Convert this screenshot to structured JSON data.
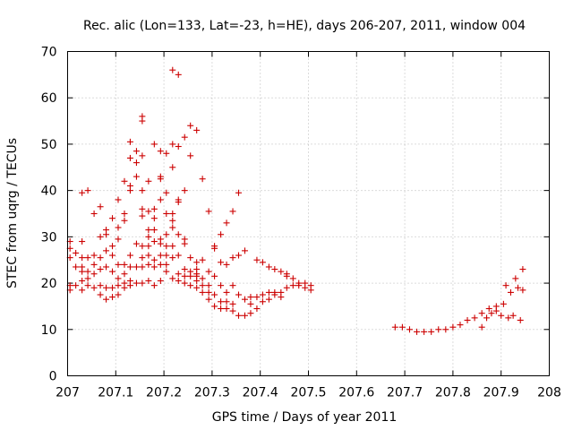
{
  "chart_data": {
    "type": "scatter",
    "title": "Rec. alic (Lon=133, Lat=-23, h=HE), days 206-207, 2011, window 004",
    "xlabel": "GPS time / Days of year 2011",
    "ylabel": "STEC from uqrg / TECUs",
    "xlim": [
      207,
      208
    ],
    "ylim": [
      0,
      70
    ],
    "grid": true,
    "marker": "+",
    "marker_color": "#cc0000",
    "x_ticks": [
      207,
      207.1,
      207.2,
      207.3,
      207.4,
      207.5,
      207.6,
      207.7,
      207.8,
      207.9,
      208
    ],
    "x_tick_labels": [
      "207",
      "207.1",
      "207.2",
      "207.3",
      "207.4",
      "207.5",
      "207.6",
      "207.7",
      "207.8",
      "207.9",
      "208"
    ],
    "y_ticks": [
      0,
      10,
      20,
      30,
      40,
      50,
      60,
      70
    ],
    "y_tick_labels": [
      "0",
      "10",
      "20",
      "30",
      "40",
      "50",
      "60",
      "70"
    ],
    "series": [
      {
        "name": "STEC",
        "points": [
          [
            207.005,
            18.5
          ],
          [
            207.005,
            19.5
          ],
          [
            207.005,
            25.5
          ],
          [
            207.005,
            27.5
          ],
          [
            207.005,
            29.0
          ],
          [
            207.017,
            19.5
          ],
          [
            207.017,
            23.5
          ],
          [
            207.017,
            26.5
          ],
          [
            207.03,
            18.5
          ],
          [
            207.03,
            20.5
          ],
          [
            207.03,
            22.5
          ],
          [
            207.03,
            23.5
          ],
          [
            207.03,
            25.5
          ],
          [
            207.03,
            29.0
          ],
          [
            207.03,
            39.5
          ],
          [
            207.042,
            19.5
          ],
          [
            207.042,
            21.0
          ],
          [
            207.042,
            22.5
          ],
          [
            207.042,
            25.5
          ],
          [
            207.042,
            40.0
          ],
          [
            207.055,
            19.0
          ],
          [
            207.055,
            22.0
          ],
          [
            207.055,
            24.0
          ],
          [
            207.055,
            26.0
          ],
          [
            207.055,
            35.0
          ],
          [
            207.068,
            17.5
          ],
          [
            207.068,
            19.5
          ],
          [
            207.068,
            23.0
          ],
          [
            207.068,
            25.5
          ],
          [
            207.068,
            30.0
          ],
          [
            207.068,
            36.5
          ],
          [
            207.08,
            16.5
          ],
          [
            207.08,
            19.0
          ],
          [
            207.08,
            23.5
          ],
          [
            207.08,
            27.0
          ],
          [
            207.08,
            30.5
          ],
          [
            207.08,
            31.5
          ],
          [
            207.093,
            17.0
          ],
          [
            207.093,
            19.0
          ],
          [
            207.093,
            22.5
          ],
          [
            207.093,
            26.0
          ],
          [
            207.093,
            28.0
          ],
          [
            207.093,
            34.0
          ],
          [
            207.105,
            17.5
          ],
          [
            207.105,
            19.5
          ],
          [
            207.105,
            21.0
          ],
          [
            207.105,
            24.0
          ],
          [
            207.105,
            29.5
          ],
          [
            207.105,
            32.0
          ],
          [
            207.105,
            38.0
          ],
          [
            207.118,
            19.0
          ],
          [
            207.118,
            20.0
          ],
          [
            207.118,
            22.0
          ],
          [
            207.118,
            24.0
          ],
          [
            207.118,
            33.5
          ],
          [
            207.118,
            35.0
          ],
          [
            207.118,
            42.0
          ],
          [
            207.13,
            19.5
          ],
          [
            207.13,
            20.5
          ],
          [
            207.13,
            23.5
          ],
          [
            207.13,
            26.0
          ],
          [
            207.13,
            40.0
          ],
          [
            207.13,
            41.0
          ],
          [
            207.13,
            47.0
          ],
          [
            207.13,
            50.5
          ],
          [
            207.143,
            20.0
          ],
          [
            207.143,
            23.5
          ],
          [
            207.143,
            28.5
          ],
          [
            207.143,
            43.0
          ],
          [
            207.143,
            46.0
          ],
          [
            207.143,
            48.5
          ],
          [
            207.155,
            20.0
          ],
          [
            207.155,
            23.5
          ],
          [
            207.155,
            25.5
          ],
          [
            207.155,
            28.0
          ],
          [
            207.155,
            34.5
          ],
          [
            207.155,
            36.0
          ],
          [
            207.155,
            40.0
          ],
          [
            207.155,
            47.5
          ],
          [
            207.155,
            55.0
          ],
          [
            207.155,
            56.0
          ],
          [
            207.168,
            20.5
          ],
          [
            207.168,
            24.0
          ],
          [
            207.168,
            26.0
          ],
          [
            207.168,
            28.0
          ],
          [
            207.168,
            30.0
          ],
          [
            207.168,
            31.5
          ],
          [
            207.168,
            35.5
          ],
          [
            207.168,
            42.0
          ],
          [
            207.18,
            19.5
          ],
          [
            207.18,
            23.5
          ],
          [
            207.18,
            25.0
          ],
          [
            207.18,
            29.0
          ],
          [
            207.18,
            31.5
          ],
          [
            207.18,
            34.0
          ],
          [
            207.18,
            36.0
          ],
          [
            207.18,
            50.0
          ],
          [
            207.193,
            20.5
          ],
          [
            207.193,
            24.0
          ],
          [
            207.193,
            26.0
          ],
          [
            207.193,
            28.5
          ],
          [
            207.193,
            29.5
          ],
          [
            207.193,
            38.0
          ],
          [
            207.193,
            42.5
          ],
          [
            207.193,
            43.0
          ],
          [
            207.193,
            48.5
          ],
          [
            207.205,
            22.5
          ],
          [
            207.205,
            24.0
          ],
          [
            207.205,
            26.0
          ],
          [
            207.205,
            28.0
          ],
          [
            207.205,
            30.5
          ],
          [
            207.205,
            35.0
          ],
          [
            207.205,
            39.5
          ],
          [
            207.205,
            48.0
          ],
          [
            207.218,
            21.0
          ],
          [
            207.218,
            25.5
          ],
          [
            207.218,
            28.0
          ],
          [
            207.218,
            32.0
          ],
          [
            207.218,
            33.5
          ],
          [
            207.218,
            35.0
          ],
          [
            207.218,
            45.0
          ],
          [
            207.218,
            50.0
          ],
          [
            207.218,
            66.0
          ],
          [
            207.23,
            20.5
          ],
          [
            207.23,
            22.0
          ],
          [
            207.23,
            26.0
          ],
          [
            207.23,
            30.5
          ],
          [
            207.23,
            37.5
          ],
          [
            207.23,
            38.0
          ],
          [
            207.23,
            49.5
          ],
          [
            207.23,
            65.0
          ],
          [
            207.243,
            20.0
          ],
          [
            207.243,
            21.5
          ],
          [
            207.243,
            23.0
          ],
          [
            207.243,
            28.5
          ],
          [
            207.243,
            29.5
          ],
          [
            207.243,
            40.0
          ],
          [
            207.243,
            51.5
          ],
          [
            207.255,
            19.5
          ],
          [
            207.255,
            21.5
          ],
          [
            207.255,
            22.5
          ],
          [
            207.255,
            25.5
          ],
          [
            207.255,
            47.5
          ],
          [
            207.255,
            54.0
          ],
          [
            207.268,
            19.0
          ],
          [
            207.268,
            20.5
          ],
          [
            207.268,
            21.5
          ],
          [
            207.268,
            22.0
          ],
          [
            207.268,
            23.0
          ],
          [
            207.268,
            24.5
          ],
          [
            207.268,
            53.0
          ],
          [
            207.28,
            18.0
          ],
          [
            207.28,
            19.5
          ],
          [
            207.28,
            21.0
          ],
          [
            207.28,
            25.0
          ],
          [
            207.28,
            42.5
          ],
          [
            207.293,
            16.5
          ],
          [
            207.293,
            18.0
          ],
          [
            207.293,
            19.5
          ],
          [
            207.293,
            22.5
          ],
          [
            207.293,
            35.5
          ],
          [
            207.305,
            15.0
          ],
          [
            207.305,
            17.5
          ],
          [
            207.305,
            21.5
          ],
          [
            207.305,
            27.5
          ],
          [
            207.305,
            28.0
          ],
          [
            207.318,
            14.5
          ],
          [
            207.318,
            16.0
          ],
          [
            207.318,
            19.5
          ],
          [
            207.318,
            24.5
          ],
          [
            207.318,
            30.5
          ],
          [
            207.33,
            14.5
          ],
          [
            207.33,
            16.0
          ],
          [
            207.33,
            18.0
          ],
          [
            207.33,
            24.0
          ],
          [
            207.33,
            33.0
          ],
          [
            207.343,
            14.0
          ],
          [
            207.343,
            15.5
          ],
          [
            207.343,
            19.5
          ],
          [
            207.343,
            25.5
          ],
          [
            207.343,
            35.5
          ],
          [
            207.355,
            13.0
          ],
          [
            207.355,
            17.5
          ],
          [
            207.355,
            26.0
          ],
          [
            207.355,
            39.5
          ],
          [
            207.368,
            13.0
          ],
          [
            207.368,
            16.5
          ],
          [
            207.368,
            27.0
          ],
          [
            207.38,
            13.5
          ],
          [
            207.38,
            15.5
          ],
          [
            207.38,
            17.0
          ],
          [
            207.393,
            14.5
          ],
          [
            207.393,
            17.0
          ],
          [
            207.393,
            25.0
          ],
          [
            207.405,
            16.0
          ],
          [
            207.405,
            17.5
          ],
          [
            207.405,
            24.5
          ],
          [
            207.418,
            16.5
          ],
          [
            207.418,
            18.0
          ],
          [
            207.418,
            23.5
          ],
          [
            207.43,
            17.5
          ],
          [
            207.43,
            18.0
          ],
          [
            207.43,
            23.0
          ],
          [
            207.443,
            18.0
          ],
          [
            207.443,
            17.0
          ],
          [
            207.443,
            22.5
          ],
          [
            207.455,
            19.0
          ],
          [
            207.455,
            22.0
          ],
          [
            207.455,
            21.5
          ],
          [
            207.468,
            19.5
          ],
          [
            207.468,
            21.0
          ],
          [
            207.48,
            19.5
          ],
          [
            207.48,
            20.0
          ],
          [
            207.493,
            20.0
          ],
          [
            207.493,
            19.0
          ],
          [
            207.505,
            19.5
          ],
          [
            207.505,
            18.5
          ],
          [
            207.68,
            10.5
          ],
          [
            207.695,
            10.5
          ],
          [
            207.71,
            10.0
          ],
          [
            207.725,
            9.5
          ],
          [
            207.74,
            9.5
          ],
          [
            207.755,
            9.5
          ],
          [
            207.77,
            10.0
          ],
          [
            207.785,
            10.0
          ],
          [
            207.8,
            10.5
          ],
          [
            207.815,
            11.0
          ],
          [
            207.83,
            12.0
          ],
          [
            207.845,
            12.5
          ],
          [
            207.86,
            13.5
          ],
          [
            207.875,
            14.5
          ],
          [
            207.89,
            15.0
          ],
          [
            207.86,
            10.5
          ],
          [
            207.87,
            12.5
          ],
          [
            207.88,
            13.5
          ],
          [
            207.89,
            14.0
          ],
          [
            207.9,
            13.0
          ],
          [
            207.905,
            15.5
          ],
          [
            207.91,
            19.5
          ],
          [
            207.915,
            12.5
          ],
          [
            207.92,
            18.0
          ],
          [
            207.925,
            13.0
          ],
          [
            207.93,
            21.0
          ],
          [
            207.935,
            19.0
          ],
          [
            207.94,
            12.0
          ],
          [
            207.945,
            18.5
          ],
          [
            207.945,
            23.0
          ]
        ]
      }
    ]
  }
}
